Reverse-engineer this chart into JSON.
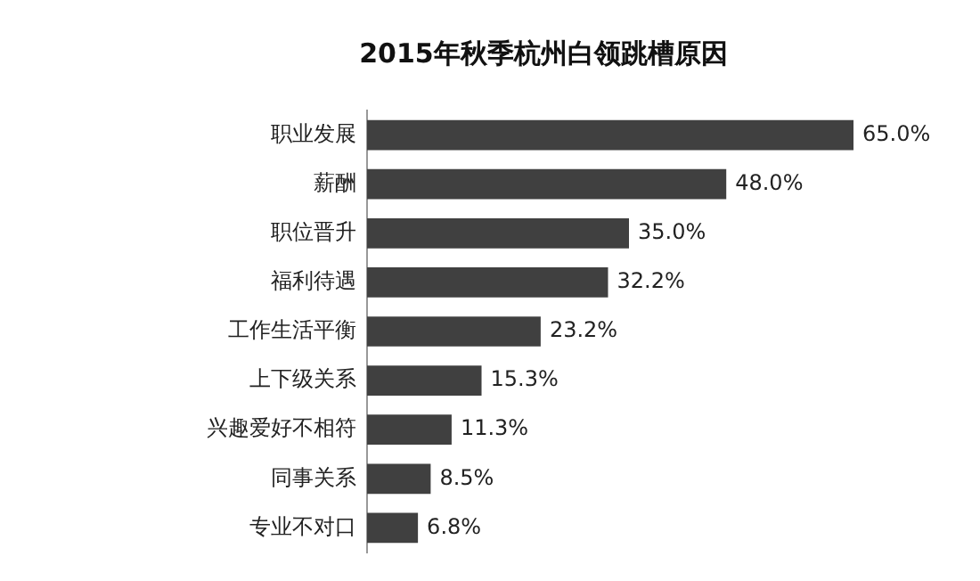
{
  "chart_data": {
    "type": "bar",
    "orientation": "horizontal",
    "title": "2015年秋季杭州白领跳槽原因",
    "categories": [
      "职业发展",
      "薪酬",
      "职位晋升",
      "福利待遇",
      "工作生活平衡",
      "上下级关系",
      "兴趣爱好不相符",
      "同事关系",
      "专业不对口"
    ],
    "values": [
      65.0,
      48.0,
      35.0,
      32.2,
      23.2,
      15.3,
      11.3,
      8.5,
      6.8
    ],
    "value_labels": [
      "65.0%",
      "48.0%",
      "35.0%",
      "32.2%",
      "23.2%",
      "15.3%",
      "11.3%",
      "8.5%",
      "6.8%"
    ],
    "color": "#404040",
    "legend": false
  }
}
